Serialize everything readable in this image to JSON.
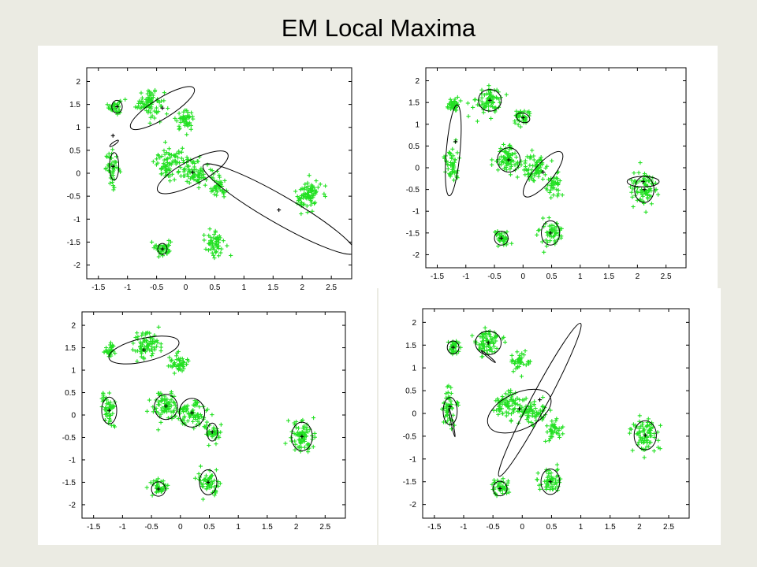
{
  "slide": {
    "title": "EM Local Maxima"
  },
  "colors": {
    "points": "#22e022",
    "ellipse": "#000000",
    "background": "#ebebe3",
    "panel": "#ffffff"
  },
  "chart_data": [
    {
      "type": "scatter",
      "panel": "top-left",
      "xlim": [
        -1.7,
        2.85
      ],
      "ylim": [
        -2.3,
        2.3
      ],
      "xticks": [
        -1.5,
        -1,
        -0.5,
        0,
        0.5,
        1,
        1.5,
        2,
        2.5
      ],
      "yticks": [
        2,
        1.5,
        1,
        0.5,
        0,
        -0.5,
        -1,
        -1.5,
        -2
      ],
      "xticklabels": [
        "-1.5",
        "-1",
        "-0.5",
        "0",
        "0.5",
        "1",
        "1.5",
        "2",
        "2.5"
      ],
      "yticklabels": [
        "2",
        "1.5",
        "1",
        "0.5",
        "0",
        "-0.5",
        "-1",
        "-1.5",
        "-2"
      ],
      "point_clusters": [
        {
          "cx": -1.22,
          "cy": 1.45,
          "sx": 0.05,
          "sy": 0.08,
          "n": 35
        },
        {
          "cx": -0.62,
          "cy": 1.55,
          "sx": 0.12,
          "sy": 0.16,
          "n": 80
        },
        {
          "cx": -0.02,
          "cy": 1.15,
          "sx": 0.08,
          "sy": 0.1,
          "n": 45
        },
        {
          "cx": -1.25,
          "cy": 0.1,
          "sx": 0.06,
          "sy": 0.18,
          "n": 45
        },
        {
          "cx": -0.28,
          "cy": 0.2,
          "sx": 0.13,
          "sy": 0.16,
          "n": 80
        },
        {
          "cx": 0.18,
          "cy": 0.05,
          "sx": 0.13,
          "sy": 0.15,
          "n": 80
        },
        {
          "cx": 0.55,
          "cy": -0.35,
          "sx": 0.07,
          "sy": 0.12,
          "n": 40
        },
        {
          "cx": 2.1,
          "cy": -0.48,
          "sx": 0.11,
          "sy": 0.18,
          "n": 80
        },
        {
          "cx": -0.38,
          "cy": -1.62,
          "sx": 0.07,
          "sy": 0.09,
          "n": 40
        },
        {
          "cx": 0.48,
          "cy": -1.5,
          "sx": 0.1,
          "sy": 0.14,
          "n": 55
        }
      ],
      "ellipses": [
        {
          "cx": -1.18,
          "cy": 1.45,
          "rx": 0.09,
          "ry": 0.14,
          "angle": 0
        },
        {
          "cx": -0.4,
          "cy": 1.42,
          "rx": 0.64,
          "ry": 0.22,
          "angle": -32
        },
        {
          "cx": -1.23,
          "cy": 0.15,
          "rx": 0.08,
          "ry": 0.3,
          "angle": 0
        },
        {
          "cx": -1.23,
          "cy": 0.65,
          "rx": 0.09,
          "ry": 0.03,
          "angle": -35
        },
        {
          "cx": 0.12,
          "cy": 0.02,
          "rx": 0.68,
          "ry": 0.26,
          "angle": -28
        },
        {
          "cx": 1.6,
          "cy": -0.78,
          "rx": 1.5,
          "ry": 0.3,
          "angle": 30
        },
        {
          "cx": -0.4,
          "cy": -1.65,
          "rx": 0.08,
          "ry": 0.12,
          "angle": 0
        }
      ],
      "centers": [
        [
          -1.18,
          1.45
        ],
        [
          -1.25,
          0.82
        ],
        [
          -1.25,
          0.15
        ],
        [
          -0.4,
          1.42
        ],
        [
          0.12,
          0.02
        ],
        [
          1.6,
          -0.8
        ],
        [
          -0.4,
          -1.65
        ]
      ]
    },
    {
      "type": "scatter",
      "panel": "top-right",
      "xlim": [
        -1.7,
        2.85
      ],
      "ylim": [
        -2.3,
        2.3
      ],
      "xticks": [
        -1.5,
        -1,
        -0.5,
        0,
        0.5,
        1,
        1.5,
        2,
        2.5
      ],
      "yticks": [
        2,
        1.5,
        1,
        0.5,
        0,
        -0.5,
        -1,
        -1.5,
        -2
      ],
      "xticklabels": [
        "-1.5",
        "-1",
        "-0.5",
        "0",
        "0.5",
        "1",
        "1.5",
        "2",
        "2.5"
      ],
      "yticklabels": [
        "2",
        "1.5",
        "1",
        "0.5",
        "0",
        "-0.5",
        "-1",
        "-1.5",
        "-2"
      ],
      "point_clusters": [
        {
          "cx": -1.22,
          "cy": 1.45,
          "sx": 0.05,
          "sy": 0.08,
          "n": 35
        },
        {
          "cx": -0.6,
          "cy": 1.55,
          "sx": 0.11,
          "sy": 0.16,
          "n": 75
        },
        {
          "cx": -0.02,
          "cy": 1.15,
          "sx": 0.08,
          "sy": 0.1,
          "n": 40
        },
        {
          "cx": -1.25,
          "cy": 0.1,
          "sx": 0.06,
          "sy": 0.2,
          "n": 50
        },
        {
          "cx": -0.28,
          "cy": 0.2,
          "sx": 0.12,
          "sy": 0.16,
          "n": 75
        },
        {
          "cx": 0.18,
          "cy": 0.0,
          "sx": 0.13,
          "sy": 0.16,
          "n": 75
        },
        {
          "cx": 0.55,
          "cy": -0.4,
          "sx": 0.07,
          "sy": 0.12,
          "n": 40
        },
        {
          "cx": 2.1,
          "cy": -0.45,
          "sx": 0.11,
          "sy": 0.18,
          "n": 80
        },
        {
          "cx": -0.38,
          "cy": -1.62,
          "sx": 0.07,
          "sy": 0.09,
          "n": 40
        },
        {
          "cx": 0.48,
          "cy": -1.5,
          "sx": 0.1,
          "sy": 0.14,
          "n": 55
        }
      ],
      "ellipses": [
        {
          "cx": -1.22,
          "cy": 0.4,
          "rx": 0.12,
          "ry": 1.05,
          "angle": 5
        },
        {
          "cx": -0.58,
          "cy": 1.55,
          "rx": 0.2,
          "ry": 0.25,
          "angle": 0
        },
        {
          "cx": 0.0,
          "cy": 1.15,
          "rx": 0.08,
          "ry": 0.16,
          "angle": -70
        },
        {
          "cx": -0.25,
          "cy": 0.18,
          "rx": 0.2,
          "ry": 0.28,
          "angle": 0
        },
        {
          "cx": 0.35,
          "cy": -0.15,
          "rx": 0.5,
          "ry": 0.22,
          "angle": -50
        },
        {
          "cx": 2.12,
          "cy": -0.5,
          "rx": 0.17,
          "ry": 0.3,
          "angle": 0
        },
        {
          "cx": 2.1,
          "cy": -0.32,
          "rx": 0.28,
          "ry": 0.12,
          "angle": 0
        },
        {
          "cx": -0.38,
          "cy": -1.62,
          "rx": 0.12,
          "ry": 0.16,
          "angle": 0
        },
        {
          "cx": 0.48,
          "cy": -1.5,
          "rx": 0.16,
          "ry": 0.28,
          "angle": 0
        }
      ],
      "centers": [
        [
          -1.18,
          0.6
        ],
        [
          -0.58,
          1.55
        ],
        [
          0.0,
          1.15
        ],
        [
          -0.25,
          0.18
        ],
        [
          0.35,
          -0.1
        ],
        [
          2.12,
          -0.5
        ],
        [
          2.1,
          -0.32
        ],
        [
          -0.38,
          -1.62
        ],
        [
          0.48,
          -1.5
        ]
      ]
    },
    {
      "type": "scatter",
      "panel": "bottom-left",
      "xlim": [
        -1.7,
        2.85
      ],
      "ylim": [
        -2.3,
        2.3
      ],
      "xticks": [
        -1.5,
        -1,
        -0.5,
        0,
        0.5,
        1,
        1.5,
        2,
        2.5
      ],
      "yticks": [
        2,
        1.5,
        1,
        0.5,
        0,
        -0.5,
        -1,
        -1.5,
        -2
      ],
      "xticklabels": [
        "-1.5",
        "-1",
        "-0.5",
        "0",
        "0.5",
        "1",
        "1.5",
        "2",
        "2.5"
      ],
      "yticklabels": [
        "2",
        "1.5",
        "1",
        "0.5",
        "0",
        "-0.5",
        "-1",
        "-1.5",
        "-2"
      ],
      "point_clusters": [
        {
          "cx": -1.2,
          "cy": 1.45,
          "sx": 0.06,
          "sy": 0.08,
          "n": 35
        },
        {
          "cx": -0.6,
          "cy": 1.55,
          "sx": 0.12,
          "sy": 0.16,
          "n": 80
        },
        {
          "cx": -0.02,
          "cy": 1.15,
          "sx": 0.08,
          "sy": 0.1,
          "n": 45
        },
        {
          "cx": -1.25,
          "cy": 0.1,
          "sx": 0.06,
          "sy": 0.2,
          "n": 50
        },
        {
          "cx": -0.26,
          "cy": 0.2,
          "sx": 0.12,
          "sy": 0.16,
          "n": 75
        },
        {
          "cx": 0.18,
          "cy": 0.02,
          "sx": 0.13,
          "sy": 0.15,
          "n": 75
        },
        {
          "cx": 0.55,
          "cy": -0.38,
          "sx": 0.07,
          "sy": 0.12,
          "n": 40
        },
        {
          "cx": 2.1,
          "cy": -0.48,
          "sx": 0.11,
          "sy": 0.18,
          "n": 80
        },
        {
          "cx": -0.38,
          "cy": -1.62,
          "sx": 0.07,
          "sy": 0.09,
          "n": 40
        },
        {
          "cx": 0.48,
          "cy": -1.5,
          "sx": 0.1,
          "sy": 0.14,
          "n": 55
        }
      ],
      "ellipses": [
        {
          "cx": -0.63,
          "cy": 1.45,
          "rx": 0.62,
          "ry": 0.26,
          "angle": -13
        },
        {
          "cx": -1.23,
          "cy": 0.1,
          "rx": 0.13,
          "ry": 0.3,
          "angle": 0
        },
        {
          "cx": -0.25,
          "cy": 0.18,
          "rx": 0.2,
          "ry": 0.28,
          "angle": 0
        },
        {
          "cx": 0.2,
          "cy": 0.05,
          "rx": 0.22,
          "ry": 0.32,
          "angle": 0
        },
        {
          "cx": 0.55,
          "cy": -0.38,
          "rx": 0.09,
          "ry": 0.2,
          "angle": 0
        },
        {
          "cx": 2.1,
          "cy": -0.48,
          "rx": 0.18,
          "ry": 0.32,
          "angle": 0
        },
        {
          "cx": -0.38,
          "cy": -1.65,
          "rx": 0.12,
          "ry": 0.16,
          "angle": 0
        },
        {
          "cx": 0.48,
          "cy": -1.5,
          "rx": 0.15,
          "ry": 0.28,
          "angle": 0
        }
      ],
      "centers": [
        [
          -0.63,
          1.45
        ],
        [
          -1.23,
          0.1
        ],
        [
          -0.25,
          0.2
        ],
        [
          0.2,
          0.05
        ],
        [
          0.55,
          -0.38
        ],
        [
          2.1,
          -0.48
        ],
        [
          -0.38,
          -1.65
        ],
        [
          0.48,
          -1.5
        ]
      ]
    },
    {
      "type": "scatter",
      "panel": "bottom-right",
      "xlim": [
        -1.7,
        2.85
      ],
      "ylim": [
        -2.3,
        2.3
      ],
      "xticks": [
        -1.5,
        -1,
        -0.5,
        0,
        0.5,
        1,
        1.5,
        2,
        2.5
      ],
      "yticks": [
        2,
        1.5,
        1,
        0.5,
        0,
        -0.5,
        -1,
        -1.5,
        -2
      ],
      "xticklabels": [
        "-1.5",
        "-1",
        "-0.5",
        "0",
        "0.5",
        "1",
        "1.5",
        "2",
        "2.5"
      ],
      "yticklabels": [
        "2",
        "1.5",
        "1",
        "0.5",
        "0",
        "-0.5",
        "-1",
        "-1.5",
        "-2"
      ],
      "point_clusters": [
        {
          "cx": -1.18,
          "cy": 1.45,
          "sx": 0.05,
          "sy": 0.08,
          "n": 35
        },
        {
          "cx": -0.6,
          "cy": 1.55,
          "sx": 0.11,
          "sy": 0.16,
          "n": 75
        },
        {
          "cx": -0.02,
          "cy": 1.15,
          "sx": 0.08,
          "sy": 0.1,
          "n": 40
        },
        {
          "cx": -1.25,
          "cy": 0.1,
          "sx": 0.06,
          "sy": 0.2,
          "n": 50
        },
        {
          "cx": -0.26,
          "cy": 0.2,
          "sx": 0.12,
          "sy": 0.16,
          "n": 75
        },
        {
          "cx": 0.18,
          "cy": 0.02,
          "sx": 0.13,
          "sy": 0.15,
          "n": 75
        },
        {
          "cx": 0.55,
          "cy": -0.38,
          "sx": 0.07,
          "sy": 0.12,
          "n": 40
        },
        {
          "cx": 2.1,
          "cy": -0.48,
          "sx": 0.11,
          "sy": 0.18,
          "n": 80
        },
        {
          "cx": -0.38,
          "cy": -1.62,
          "sx": 0.07,
          "sy": 0.09,
          "n": 40
        },
        {
          "cx": 0.48,
          "cy": -1.5,
          "sx": 0.1,
          "sy": 0.14,
          "n": 55
        }
      ],
      "ellipses": [
        {
          "cx": -1.18,
          "cy": 1.45,
          "rx": 0.1,
          "ry": 0.14,
          "angle": 0
        },
        {
          "cx": -0.58,
          "cy": 1.55,
          "rx": 0.22,
          "ry": 0.26,
          "angle": 0
        },
        {
          "cx": -0.58,
          "cy": 1.25,
          "rx": 0.16,
          "ry": 0.02,
          "angle": 40
        },
        {
          "cx": -1.23,
          "cy": 0.05,
          "rx": 0.12,
          "ry": 0.3,
          "angle": 0
        },
        {
          "cx": -1.2,
          "cy": -0.2,
          "rx": 0.25,
          "ry": 0.02,
          "angle": 78
        },
        {
          "cx": 0.3,
          "cy": 0.3,
          "rx": 1.48,
          "ry": 0.18,
          "angle": -62
        },
        {
          "cx": -0.05,
          "cy": 0.05,
          "rx": 0.58,
          "ry": 0.4,
          "angle": -25
        },
        {
          "cx": 2.1,
          "cy": -0.48,
          "rx": 0.19,
          "ry": 0.32,
          "angle": 0
        },
        {
          "cx": -0.38,
          "cy": -1.65,
          "rx": 0.12,
          "ry": 0.16,
          "angle": 0
        },
        {
          "cx": 0.48,
          "cy": -1.5,
          "rx": 0.16,
          "ry": 0.28,
          "angle": 0
        }
      ],
      "centers": [
        [
          -1.18,
          1.45
        ],
        [
          -0.58,
          1.55
        ],
        [
          -1.23,
          0.15
        ],
        [
          -0.05,
          0.1
        ],
        [
          0.3,
          0.3
        ],
        [
          2.1,
          -0.48
        ],
        [
          -0.38,
          -1.65
        ],
        [
          0.48,
          -1.5
        ]
      ]
    }
  ]
}
